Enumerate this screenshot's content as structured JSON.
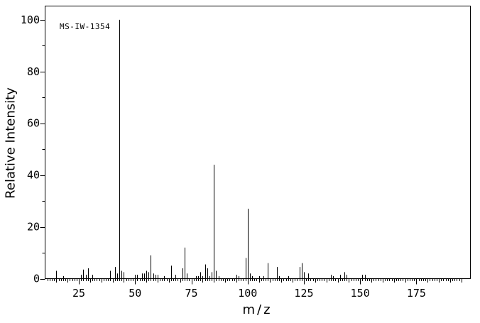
{
  "chart_data": {
    "type": "bar",
    "subtype": "mass-spectrum",
    "annotation": "MS-IW-1354",
    "xlabel": "m/z",
    "ylabel": "Relative Intensity",
    "xlim": [
      10,
      199
    ],
    "ylim": [
      0,
      105.3
    ],
    "x_major_ticks": [
      25,
      50,
      75,
      100,
      125,
      150,
      175
    ],
    "x_minor_tick_step": 1,
    "x_mid_tick_step": 5,
    "x_minor_tick_range": [
      11,
      195
    ],
    "y_major_ticks": [
      0,
      20,
      40,
      60,
      80,
      100
    ],
    "y_minor_tick_step": 10,
    "grid": false,
    "legend": false,
    "colors": {
      "foreground": "#000000",
      "background": "#ffffff"
    },
    "peaks": [
      [
        15,
        3
      ],
      [
        18,
        1
      ],
      [
        26,
        1.5
      ],
      [
        27,
        3.5
      ],
      [
        28,
        1.5
      ],
      [
        29,
        4
      ],
      [
        31,
        1.5
      ],
      [
        39,
        3
      ],
      [
        41,
        4.5
      ],
      [
        42,
        2
      ],
      [
        43,
        100
      ],
      [
        44,
        3
      ],
      [
        45,
        2.5
      ],
      [
        50,
        1.5
      ],
      [
        51,
        1.5
      ],
      [
        53,
        2
      ],
      [
        54,
        2
      ],
      [
        55,
        3
      ],
      [
        56,
        2.5
      ],
      [
        57,
        9
      ],
      [
        58,
        2
      ],
      [
        59,
        1.5
      ],
      [
        60,
        1.5
      ],
      [
        63,
        1
      ],
      [
        66,
        5
      ],
      [
        68,
        1.5
      ],
      [
        71,
        4
      ],
      [
        72,
        12
      ],
      [
        73,
        2
      ],
      [
        77,
        1
      ],
      [
        78,
        1
      ],
      [
        79,
        2.5
      ],
      [
        80,
        1
      ],
      [
        81,
        5.5
      ],
      [
        82,
        4
      ],
      [
        83,
        1
      ],
      [
        84,
        2.5
      ],
      [
        85,
        44
      ],
      [
        86,
        3
      ],
      [
        87,
        1
      ],
      [
        95,
        1.5
      ],
      [
        96,
        1
      ],
      [
        99,
        8
      ],
      [
        100,
        27
      ],
      [
        101,
        2
      ],
      [
        102,
        1
      ],
      [
        105,
        1
      ],
      [
        107,
        1
      ],
      [
        109,
        6
      ],
      [
        113,
        4.5
      ],
      [
        114,
        1
      ],
      [
        118,
        1
      ],
      [
        123,
        4.5
      ],
      [
        124,
        6
      ],
      [
        125,
        2.5
      ],
      [
        127,
        2
      ],
      [
        137,
        1.5
      ],
      [
        138,
        1
      ],
      [
        141,
        1.5
      ],
      [
        143,
        2.5
      ],
      [
        144,
        1.5
      ],
      [
        151,
        1.5
      ],
      [
        152,
        1.5
      ]
    ]
  }
}
